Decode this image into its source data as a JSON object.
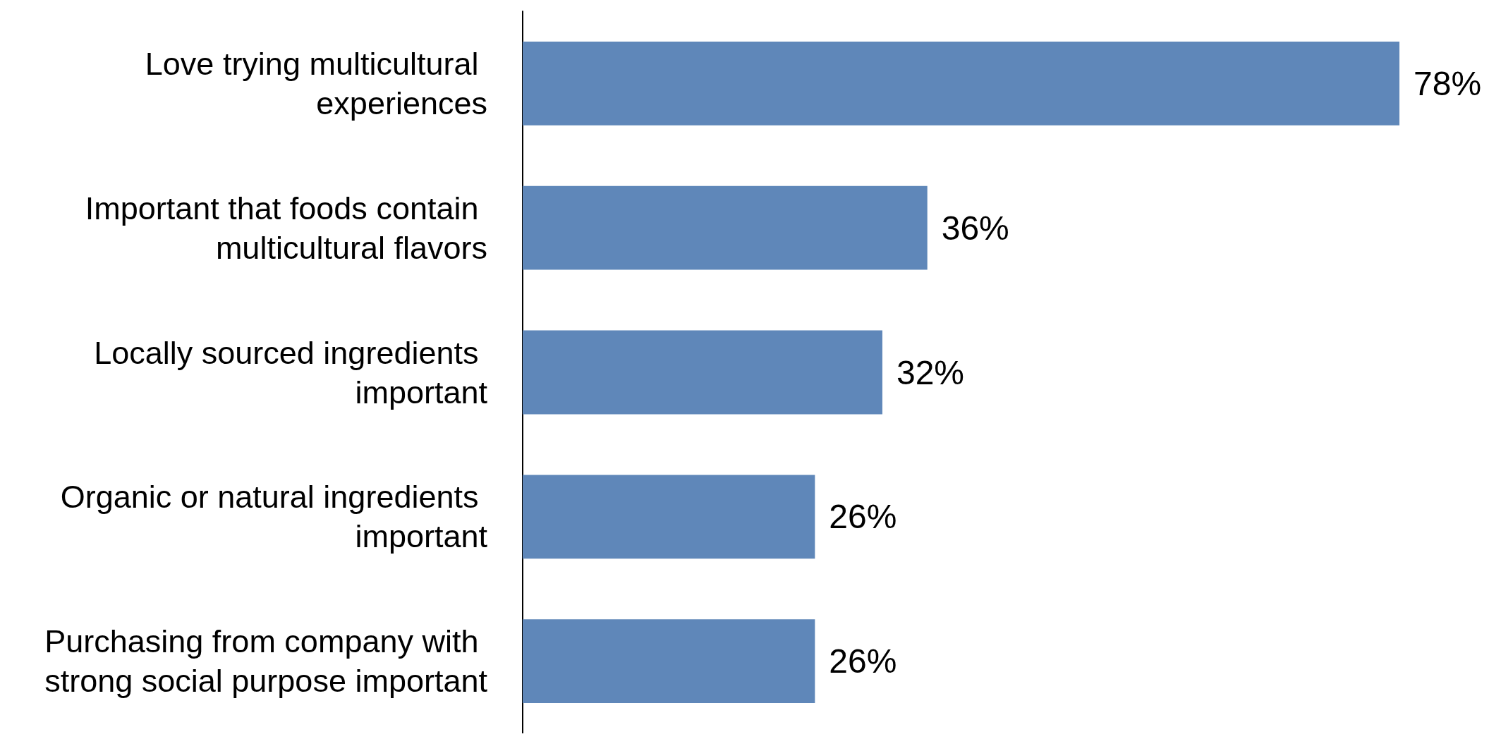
{
  "chart_data": {
    "type": "bar",
    "orientation": "horizontal",
    "categories": [
      "Love trying multicultural experiences",
      "Important that foods contain multicultural flavors",
      "Locally sourced ingredients important",
      "Organic or natural ingredients important",
      "Purchasing from company with strong social purpose important"
    ],
    "values": [
      78,
      36,
      32,
      26,
      26
    ],
    "value_labels": [
      "78%",
      "36%",
      "32%",
      "26%",
      "26%"
    ],
    "color": "#5f87b9"
  }
}
